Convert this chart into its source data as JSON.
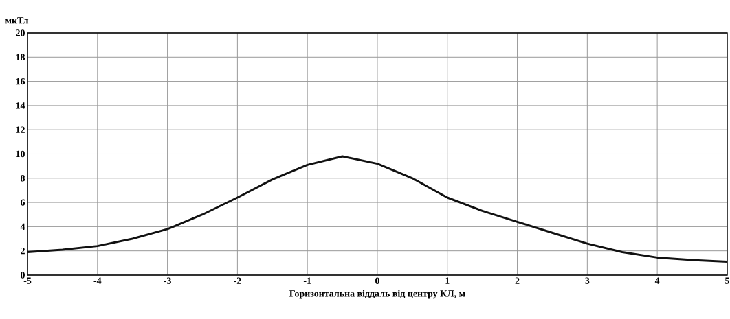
{
  "chart_data": {
    "type": "line",
    "xlabel": "Горизонтальна віддаль від центру КЛ, м",
    "ylabel": "мкТл",
    "x": [
      -5,
      -4.5,
      -4,
      -3.5,
      -3,
      -2.5,
      -2,
      -1.5,
      -1,
      -0.5,
      0,
      0.5,
      1,
      1.5,
      2,
      2.5,
      3,
      3.5,
      4,
      4.5,
      5
    ],
    "series": [
      {
        "color": "#111111",
        "values": [
          1.9,
          2.1,
          2.4,
          3.0,
          3.8,
          5.0,
          6.4,
          7.9,
          9.1,
          9.8,
          9.2,
          8.0,
          6.4,
          5.3,
          4.4,
          3.5,
          2.6,
          1.9,
          1.45,
          1.25,
          1.1
        ]
      }
    ],
    "xlim": [
      -5,
      5
    ],
    "xticks": [
      -5,
      -4,
      -3,
      -2,
      -1,
      0,
      1,
      2,
      3,
      4,
      5
    ],
    "ylim": [
      0,
      20
    ],
    "yticks": [
      0,
      2,
      4,
      6,
      8,
      10,
      12,
      14,
      16,
      18,
      20
    ],
    "grid": true,
    "marker": "none",
    "line_style": "solid"
  }
}
